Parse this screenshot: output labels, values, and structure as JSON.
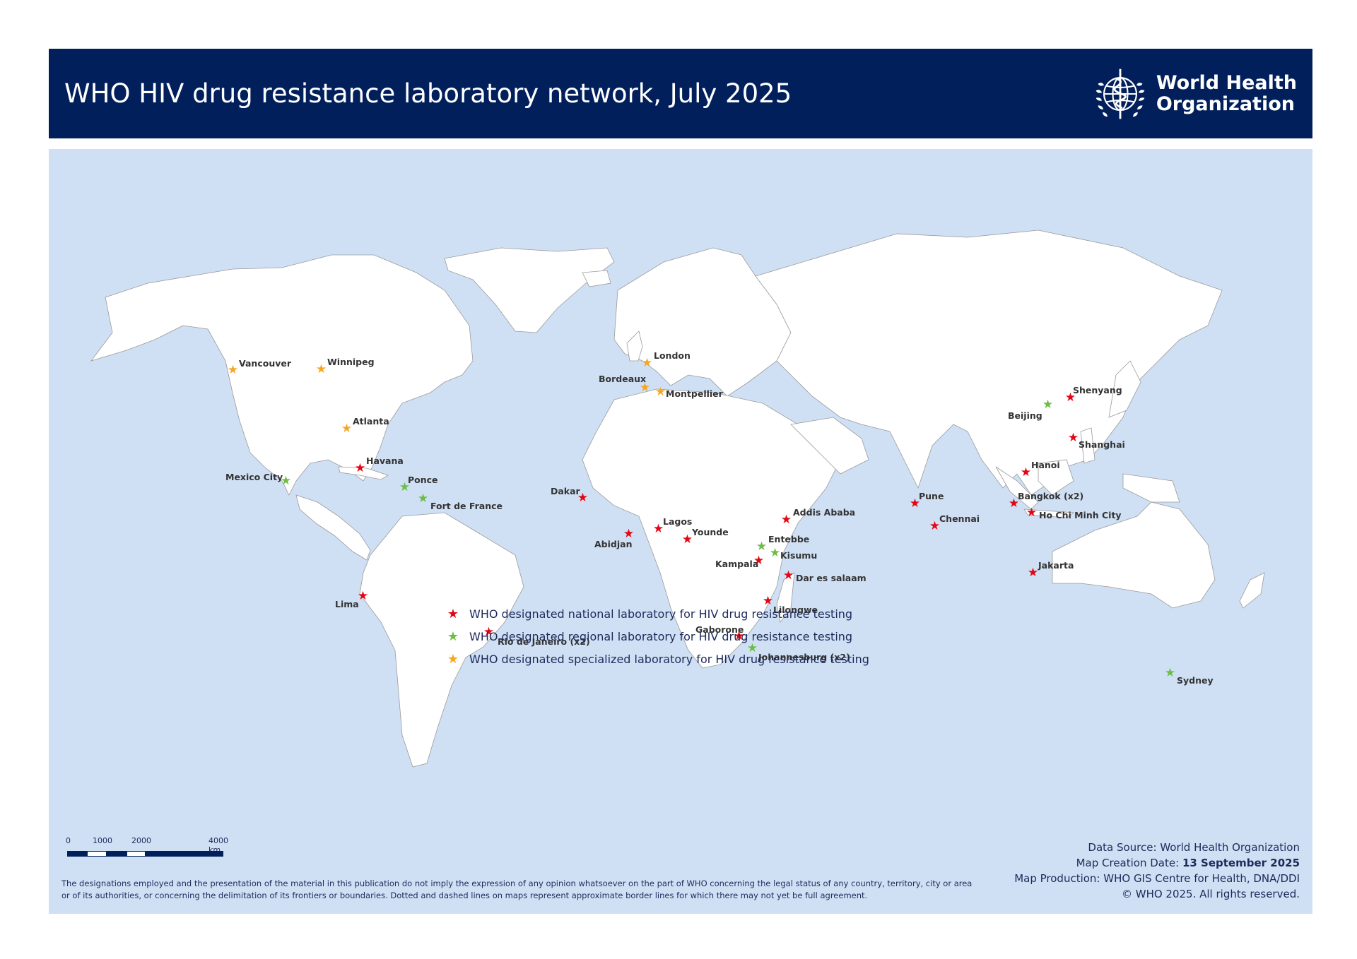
{
  "header": {
    "title": "WHO HIV drug resistance laboratory network, July 2025",
    "logo_line1": "World Health",
    "logo_line2": "Organization"
  },
  "colors": {
    "header_bg": "#001f5b",
    "ocean": "#cfe0f4",
    "land": "#ffffff",
    "national": "#e30613",
    "regional": "#6cbd45",
    "specialized": "#f5a623"
  },
  "map": {
    "labs": [
      {
        "name": "Vancouver",
        "type": "specialized"
      },
      {
        "name": "Winnipeg",
        "type": "specialized"
      },
      {
        "name": "Atlanta",
        "type": "specialized"
      },
      {
        "name": "Havana",
        "type": "national"
      },
      {
        "name": "Mexico City",
        "type": "regional"
      },
      {
        "name": "Ponce",
        "type": "regional"
      },
      {
        "name": "Fort de France",
        "type": "regional"
      },
      {
        "name": "Lima",
        "type": "national"
      },
      {
        "name": "Rio de Janeiro (x2)",
        "type": "national"
      },
      {
        "name": "London",
        "type": "specialized"
      },
      {
        "name": "Bordeaux",
        "type": "specialized"
      },
      {
        "name": "Montpellier",
        "type": "specialized"
      },
      {
        "name": "Dakar",
        "type": "national"
      },
      {
        "name": "Abidjan",
        "type": "national"
      },
      {
        "name": "Lagos",
        "type": "national"
      },
      {
        "name": "Younde",
        "type": "national"
      },
      {
        "name": "Addis Ababa",
        "type": "national"
      },
      {
        "name": "Entebbe",
        "type": "regional"
      },
      {
        "name": "Kisumu",
        "type": "regional"
      },
      {
        "name": "Kampala",
        "type": "national"
      },
      {
        "name": "Dar es salaam",
        "type": "national"
      },
      {
        "name": "Lilongwe",
        "type": "national"
      },
      {
        "name": "Gaborone",
        "type": "national"
      },
      {
        "name": "Johannesburg (x2)",
        "type": "regional"
      },
      {
        "name": "Pune",
        "type": "national"
      },
      {
        "name": "Chennai",
        "type": "national"
      },
      {
        "name": "Beijing",
        "type": "regional"
      },
      {
        "name": "Shenyang",
        "type": "national"
      },
      {
        "name": "Shanghai",
        "type": "national"
      },
      {
        "name": "Hanoi",
        "type": "national"
      },
      {
        "name": "Bangkok (x2)",
        "type": "national"
      },
      {
        "name": "Ho Chi Minh City",
        "type": "national"
      },
      {
        "name": "Jakarta",
        "type": "national"
      },
      {
        "name": "Sydney",
        "type": "regional"
      }
    ]
  },
  "legend": {
    "national": "WHO designated national laboratory for HIV drug resistance testing",
    "regional": "WHO designated regional laboratory for HIV drug resistance testing",
    "specialized": "WHO designated specialized laboratory for HIV drug resistance testing"
  },
  "scale": {
    "ticks": [
      "0",
      "1000",
      "2000",
      "4000 km"
    ]
  },
  "footer": {
    "disclaimer": "The designations employed and the presentation of the material in this publication do not imply the expression of any opinion whatsoever on the part of WHO concerning the legal status of any country, territory, city or area or of its authorities, or concerning the delimitation of its frontiers or boundaries. Dotted and dashed lines on maps represent approximate border lines for which there may not yet be full agreement.",
    "data_source": "Data Source: World Health Organization",
    "creation_label": "Map Creation Date: ",
    "creation_date": "13 September 2025",
    "production": "Map Production: WHO GIS Centre for Health, DNA/DDI",
    "copyright": "© WHO 2025. All rights reserved."
  }
}
